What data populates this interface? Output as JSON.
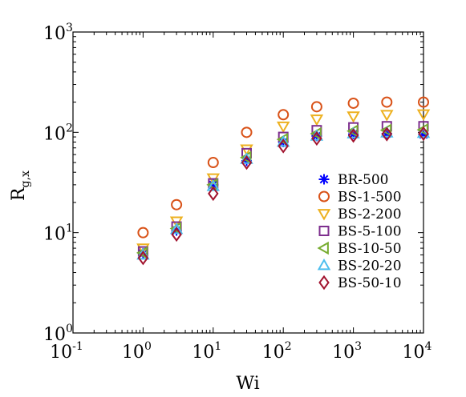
{
  "chart_data": {
    "type": "scatter",
    "xscale": "log",
    "yscale": "log",
    "xlim": [
      0.1,
      10000
    ],
    "ylim": [
      1,
      1000
    ],
    "xlabel": "Wi",
    "ylabel_main": "R",
    "ylabel_sub": "g,x",
    "x_ticks": [
      {
        "base": "10",
        "exp": "-1",
        "value": 0.1
      },
      {
        "base": "10",
        "exp": "0",
        "value": 1
      },
      {
        "base": "10",
        "exp": "1",
        "value": 10
      },
      {
        "base": "10",
        "exp": "2",
        "value": 100
      },
      {
        "base": "10",
        "exp": "3",
        "value": 1000
      },
      {
        "base": "10",
        "exp": "4",
        "value": 10000
      }
    ],
    "y_ticks": [
      {
        "base": "10",
        "exp": "0",
        "value": 1
      },
      {
        "base": "10",
        "exp": "1",
        "value": 10
      },
      {
        "base": "10",
        "exp": "2",
        "value": 100
      },
      {
        "base": "10",
        "exp": "3",
        "value": 1000
      }
    ],
    "grid": false,
    "legend_position": "bottom-right",
    "x": [
      1,
      3,
      10,
      30,
      100,
      300,
      1000,
      3000,
      10000
    ],
    "series": [
      {
        "name": "BR-500",
        "marker": "asterisk",
        "color": "#0000FF",
        "values": [
          6.2,
          10.5,
          30,
          52,
          80,
          92,
          96,
          97,
          95
        ]
      },
      {
        "name": "BS-1-500",
        "marker": "circle",
        "color": "#D95319",
        "values": [
          10,
          19,
          50,
          100,
          150,
          180,
          195,
          200,
          200
        ]
      },
      {
        "name": "BS-2-200",
        "marker": "triangle-down",
        "color": "#EDB120",
        "values": [
          7,
          13,
          35,
          68,
          115,
          135,
          145,
          150,
          152
        ]
      },
      {
        "name": "BS-5-100",
        "marker": "square",
        "color": "#7E2F8E",
        "values": [
          6.5,
          11.5,
          31,
          62,
          90,
          105,
          112,
          115,
          115
        ]
      },
      {
        "name": "BS-10-50",
        "marker": "triangle-left",
        "color": "#77AC30",
        "values": [
          6.3,
          11,
          30,
          56,
          85,
          97,
          103,
          105,
          106
        ]
      },
      {
        "name": "BS-20-20",
        "marker": "triangle-up",
        "color": "#4DBEEE",
        "values": [
          6.0,
          10.8,
          29,
          54,
          80,
          92,
          97,
          99,
          98
        ]
      },
      {
        "name": "BS-50-10",
        "marker": "diamond",
        "color": "#A2142F",
        "values": [
          5.6,
          9.6,
          24.5,
          50,
          73,
          87,
          93,
          96,
          97
        ]
      }
    ]
  }
}
